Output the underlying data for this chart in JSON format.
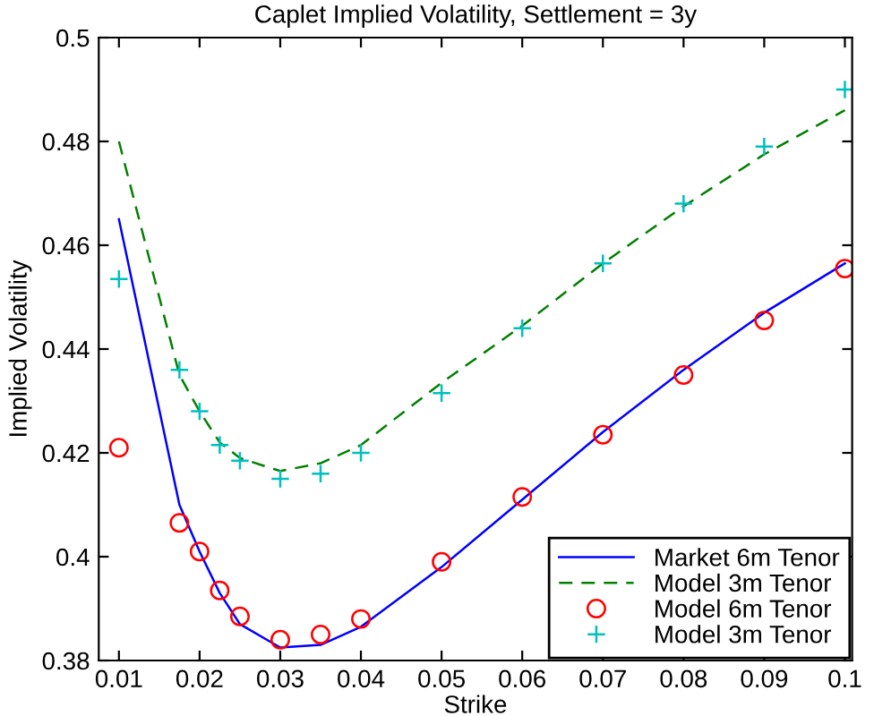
{
  "chart_data": {
    "type": "line",
    "title": "Caplet Implied Volatility, Settlement = 3y",
    "xlabel": "Strike",
    "ylabel": "Implied Volatility",
    "x": [
      0.01,
      0.0175,
      0.02,
      0.0225,
      0.025,
      0.03,
      0.035,
      0.04,
      0.05,
      0.06,
      0.07,
      0.08,
      0.09,
      0.1
    ],
    "series": [
      {
        "name": "Market 6m Tenor",
        "color": "#0000ff",
        "type": "line",
        "line_style": "solid",
        "marker": "none",
        "values": [
          0.465,
          0.41,
          0.401,
          0.393,
          0.387,
          0.3825,
          0.383,
          0.3865,
          0.398,
          0.411,
          0.424,
          0.436,
          0.447,
          0.4565
        ]
      },
      {
        "name": "Model 3m Tenor",
        "color": "#008000",
        "type": "line",
        "line_style": "dashed",
        "marker": "none",
        "values": [
          0.48,
          0.435,
          0.428,
          0.422,
          0.419,
          0.4165,
          0.418,
          0.4215,
          0.4335,
          0.4445,
          0.4565,
          0.4675,
          0.4775,
          0.486
        ]
      },
      {
        "name": "Model 6m Tenor",
        "color": "#ff0000",
        "type": "scatter",
        "marker": "circle",
        "values": [
          0.421,
          0.4065,
          0.401,
          0.3935,
          0.3885,
          0.384,
          0.385,
          0.388,
          0.399,
          0.4115,
          0.4235,
          0.435,
          0.4455,
          0.4555
        ]
      },
      {
        "name": "Model 3m Tenor",
        "color": "#00bfbf",
        "type": "scatter",
        "marker": "cross",
        "values": [
          0.4535,
          0.436,
          0.428,
          0.4215,
          0.4185,
          0.415,
          0.416,
          0.42,
          0.4315,
          0.444,
          0.4565,
          0.468,
          0.479,
          0.49
        ]
      }
    ],
    "xlim": [
      0.0075,
      0.1009
    ],
    "ylim": [
      0.38,
      0.5
    ],
    "xticks": [
      0.01,
      0.02,
      0.03,
      0.04,
      0.05,
      0.06,
      0.07,
      0.08,
      0.09,
      0.1
    ],
    "yticks": [
      0.38,
      0.4,
      0.42,
      0.44,
      0.46,
      0.48,
      0.5
    ],
    "grid": false,
    "legend": "bottom right"
  }
}
